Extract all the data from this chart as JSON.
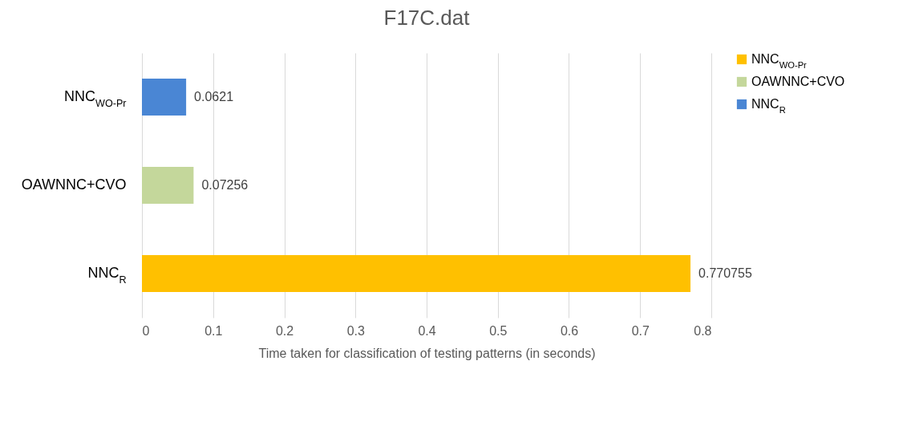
{
  "chart_data": {
    "type": "bar",
    "orientation": "horizontal",
    "title": "F17C.dat",
    "xlabel": "Time taken for classification of testing patterns (in seconds)",
    "categories": [
      "NNC$_{WO-Pr}$",
      "OAWNNC+CVO",
      "NNC$_{R}$"
    ],
    "series": [
      {
        "name": "NNC$_{WO-Pr}$",
        "color": "#ffc000",
        "values": [
          null,
          null,
          0.770755
        ]
      },
      {
        "name": "OAWNNC+CVO",
        "color": "#c4d79b",
        "values": [
          null,
          0.07256,
          null
        ]
      },
      {
        "name": "NNC$_{R}$",
        "color": "#4a86d4",
        "values": [
          0.0621,
          null,
          null
        ]
      }
    ],
    "xlim": [
      0,
      0.8
    ],
    "xticks": [
      0,
      0.1,
      0.2,
      0.3,
      0.4,
      0.5,
      0.6,
      0.7,
      0.8
    ],
    "grid": "x",
    "legend": "right",
    "data_labels": true
  }
}
